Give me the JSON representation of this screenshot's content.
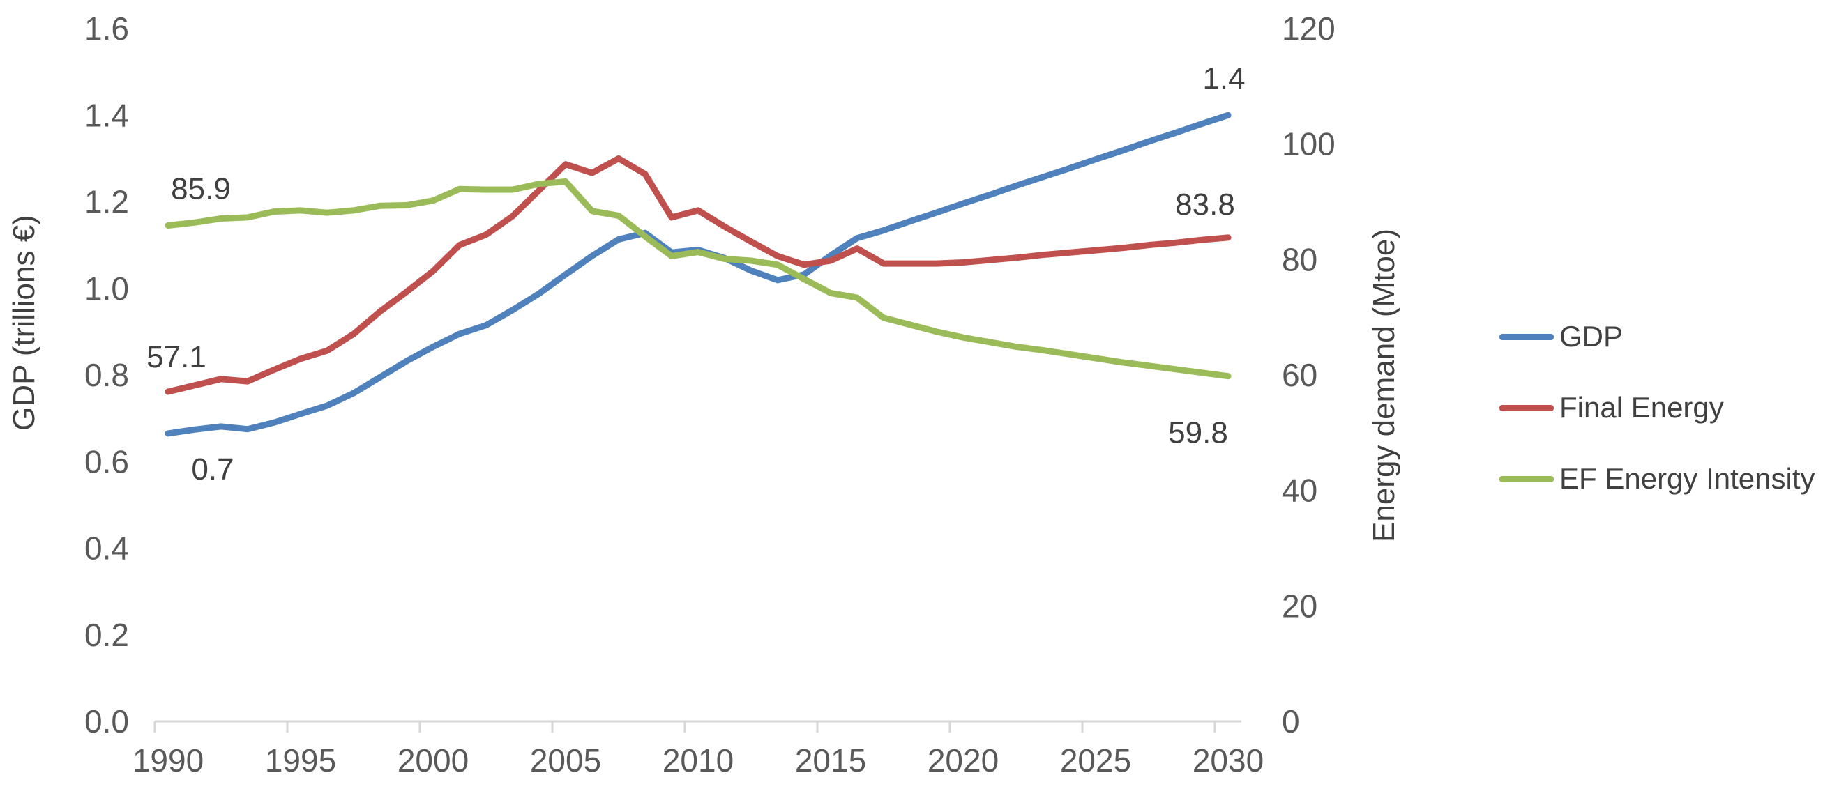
{
  "chart_data": {
    "type": "line",
    "title": "",
    "grid": false,
    "legend_position": "right",
    "legend": [
      "GDP",
      "Final Energy",
      "EF Energy Intensity"
    ],
    "years": [
      1990,
      1991,
      1992,
      1993,
      1994,
      1995,
      1996,
      1997,
      1998,
      1999,
      2000,
      2001,
      2002,
      2003,
      2004,
      2005,
      2006,
      2007,
      2008,
      2009,
      2010,
      2011,
      2012,
      2013,
      2014,
      2015,
      2016,
      2017,
      2018,
      2019,
      2020,
      2021,
      2022,
      2023,
      2024,
      2025,
      2026,
      2027,
      2028,
      2029,
      2030
    ],
    "series": [
      {
        "name": "GDP",
        "axis": "left",
        "color": "#4F81BD",
        "values": [
          0.665,
          0.674,
          0.681,
          0.675,
          0.69,
          0.71,
          0.729,
          0.758,
          0.795,
          0.832,
          0.865,
          0.895,
          0.915,
          0.95,
          0.988,
          1.032,
          1.075,
          1.113,
          1.128,
          1.083,
          1.089,
          1.07,
          1.041,
          1.019,
          1.032,
          1.076,
          1.116,
          1.134,
          1.155,
          1.175,
          1.196,
          1.216,
          1.237,
          1.257,
          1.277,
          1.298,
          1.318,
          1.339,
          1.359,
          1.38,
          1.4
        ]
      },
      {
        "name": "Final Energy",
        "axis": "right",
        "color": "#C0504D",
        "values": [
          57.1,
          58.2,
          59.3,
          58.9,
          60.9,
          62.8,
          64.2,
          67.1,
          71.0,
          74.4,
          78.0,
          82.5,
          84.3,
          87.5,
          92.0,
          96.5,
          95.0,
          97.5,
          94.8,
          87.3,
          88.5,
          85.7,
          83.1,
          80.6,
          79.1,
          79.8,
          81.9,
          79.3,
          79.3,
          79.3,
          79.5,
          79.9,
          80.3,
          80.8,
          81.2,
          81.6,
          82.0,
          82.5,
          82.9,
          83.4,
          83.8
        ]
      },
      {
        "name": "EF Energy Intensity",
        "axis": "right",
        "color": "#9BBB59",
        "values": [
          85.9,
          86.4,
          87.1,
          87.3,
          88.3,
          88.5,
          88.1,
          88.5,
          89.3,
          89.4,
          90.2,
          92.2,
          92.1,
          92.1,
          93.1,
          93.5,
          88.4,
          87.6,
          84.0,
          80.6,
          81.3,
          80.1,
          79.8,
          79.1,
          76.6,
          74.2,
          73.4,
          69.9,
          68.7,
          67.5,
          66.5,
          65.7,
          64.9,
          64.3,
          63.6,
          62.9,
          62.2,
          61.6,
          61.0,
          60.4,
          59.8
        ]
      }
    ],
    "left_axis": {
      "title": "GDP (trillions €)",
      "min": 0,
      "max": 1.6,
      "ticks": [
        "0.0",
        "0.2",
        "0.4",
        "0.6",
        "0.8",
        "1.0",
        "1.2",
        "1.4",
        "1.6"
      ]
    },
    "right_axis": {
      "title": "Energy demand (Mtoe)",
      "min": 0,
      "max": 120,
      "ticks": [
        "0",
        "20",
        "40",
        "60",
        "80",
        "100",
        "120"
      ]
    },
    "x_axis": {
      "tick_labels": [
        "1990",
        "1995",
        "2000",
        "2005",
        "2010",
        "2015",
        "2020",
        "2025",
        "2030"
      ]
    },
    "annotations": [
      {
        "series": "EF Energy Intensity",
        "year": 1990,
        "value": 85.9,
        "text": "85.9"
      },
      {
        "series": "Final Energy",
        "year": 1990,
        "value": 57.1,
        "text": "57.1"
      },
      {
        "series": "GDP",
        "year": 1990,
        "value": 0.665,
        "text": "0.7"
      },
      {
        "series": "GDP",
        "year": 2030,
        "value": 1.4,
        "text": "1.4"
      },
      {
        "series": "Final Energy",
        "year": 2030,
        "value": 83.8,
        "text": "83.8"
      },
      {
        "series": "EF Energy Intensity",
        "year": 2030,
        "value": 59.8,
        "text": "59.8"
      }
    ]
  }
}
